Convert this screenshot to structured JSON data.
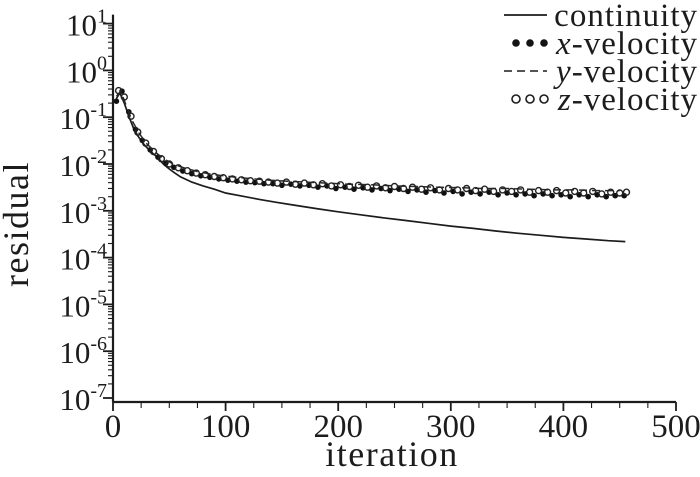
{
  "figure": {
    "background": "#ffffff",
    "ink_color": "#1c1c1c"
  },
  "chart_data": {
    "type": "line",
    "title": "",
    "xlabel": "iteration",
    "ylabel": "residual",
    "x_range": [
      0,
      500
    ],
    "x_major_ticks": [
      0,
      100,
      200,
      300,
      400,
      500
    ],
    "x_minor_tick_step": 25,
    "y_scale": "log",
    "y_range_exponents": [
      -7,
      1
    ],
    "y_tick_exponents": [
      1,
      0,
      -1,
      -2,
      -3,
      -4,
      -5,
      -6,
      -7
    ],
    "grid": false,
    "legend_position": "top-right",
    "series": [
      {
        "name": "continuity",
        "var": "",
        "label": "continuity",
        "style": "solid-line",
        "points": [
          [
            3,
            0.25
          ],
          [
            6,
            0.33
          ],
          [
            10,
            0.2
          ],
          [
            14,
            0.105
          ],
          [
            18,
            0.06
          ],
          [
            22,
            0.04
          ],
          [
            26,
            0.029
          ],
          [
            30,
            0.0225
          ],
          [
            35,
            0.0172
          ],
          [
            40,
            0.0135
          ],
          [
            45,
            0.0098
          ],
          [
            50,
            0.0078
          ],
          [
            55,
            0.0064
          ],
          [
            60,
            0.0053
          ],
          [
            70,
            0.0041
          ],
          [
            80,
            0.0034
          ],
          [
            90,
            0.0029
          ],
          [
            100,
            0.0024
          ],
          [
            115,
            0.00205
          ],
          [
            130,
            0.00175
          ],
          [
            145,
            0.00152
          ],
          [
            160,
            0.00133
          ],
          [
            180,
            0.00112
          ],
          [
            200,
            0.00095
          ],
          [
            220,
            0.00082
          ],
          [
            240,
            0.00071
          ],
          [
            260,
            0.00062
          ],
          [
            280,
            0.00054
          ],
          [
            300,
            0.00047
          ],
          [
            320,
            0.00042
          ],
          [
            340,
            0.00037
          ],
          [
            360,
            0.00033
          ],
          [
            380,
            0.0003
          ],
          [
            400,
            0.00027
          ],
          [
            420,
            0.00025
          ],
          [
            440,
            0.00023
          ],
          [
            455,
            0.00022
          ]
        ]
      },
      {
        "name": "x-velocity",
        "var": "x",
        "label": "-velocity",
        "style": "filled-dots",
        "points": [
          [
            3,
            0.22
          ],
          [
            8,
            0.36
          ],
          [
            14,
            0.13
          ],
          [
            20,
            0.055
          ],
          [
            26,
            0.032
          ],
          [
            33,
            0.02
          ],
          [
            40,
            0.014
          ],
          [
            47,
            0.0105
          ],
          [
            54,
            0.0085
          ],
          [
            62,
            0.0071
          ],
          [
            70,
            0.0062
          ],
          [
            78,
            0.0056
          ],
          [
            86,
            0.0052
          ],
          [
            94,
            0.0048
          ],
          [
            102,
            0.0045
          ],
          [
            110,
            0.0043
          ],
          [
            118,
            0.0041
          ],
          [
            126,
            0.004
          ],
          [
            134,
            0.0038
          ],
          [
            142,
            0.0038
          ],
          [
            150,
            0.0035
          ],
          [
            158,
            0.0037
          ],
          [
            166,
            0.0034
          ],
          [
            174,
            0.0035
          ],
          [
            182,
            0.0032
          ],
          [
            190,
            0.0034
          ],
          [
            198,
            0.003
          ],
          [
            206,
            0.0032
          ],
          [
            214,
            0.0029
          ],
          [
            222,
            0.0031
          ],
          [
            230,
            0.0028
          ],
          [
            238,
            0.003
          ],
          [
            246,
            0.0027
          ],
          [
            254,
            0.0029
          ],
          [
            262,
            0.0026
          ],
          [
            270,
            0.0028
          ],
          [
            278,
            0.0025
          ],
          [
            286,
            0.0027
          ],
          [
            294,
            0.0024
          ],
          [
            302,
            0.0026
          ],
          [
            310,
            0.0023
          ],
          [
            318,
            0.0025
          ],
          [
            326,
            0.0023
          ],
          [
            334,
            0.0025
          ],
          [
            342,
            0.0022
          ],
          [
            350,
            0.0024
          ],
          [
            358,
            0.0022
          ],
          [
            366,
            0.0023
          ],
          [
            374,
            0.0021
          ],
          [
            382,
            0.0023
          ],
          [
            390,
            0.0021
          ],
          [
            398,
            0.0022
          ],
          [
            406,
            0.002
          ],
          [
            414,
            0.0022
          ],
          [
            422,
            0.002
          ],
          [
            430,
            0.0022
          ],
          [
            438,
            0.002
          ],
          [
            446,
            0.0021
          ],
          [
            454,
            0.0021
          ]
        ]
      },
      {
        "name": "y-velocity",
        "var": "y",
        "label": "-velocity",
        "style": "dashed-line",
        "points": [
          [
            3,
            0.28
          ],
          [
            7,
            0.36
          ],
          [
            12,
            0.17
          ],
          [
            17,
            0.085
          ],
          [
            23,
            0.046
          ],
          [
            30,
            0.027
          ],
          [
            38,
            0.0175
          ],
          [
            46,
            0.0125
          ],
          [
            55,
            0.0096
          ],
          [
            65,
            0.008
          ],
          [
            75,
            0.0069
          ],
          [
            85,
            0.0062
          ],
          [
            95,
            0.0057
          ],
          [
            110,
            0.0052
          ],
          [
            125,
            0.0048
          ],
          [
            140,
            0.0045
          ],
          [
            155,
            0.0043
          ],
          [
            170,
            0.0041
          ],
          [
            190,
            0.0039
          ],
          [
            210,
            0.0037
          ],
          [
            230,
            0.0036
          ],
          [
            250,
            0.0034
          ],
          [
            270,
            0.0033
          ],
          [
            290,
            0.0032
          ],
          [
            310,
            0.0031
          ],
          [
            330,
            0.003
          ],
          [
            350,
            0.003
          ],
          [
            370,
            0.0029
          ],
          [
            390,
            0.0028
          ],
          [
            410,
            0.0028
          ],
          [
            430,
            0.0027
          ],
          [
            450,
            0.0027
          ]
        ]
      },
      {
        "name": "z-velocity",
        "var": "z",
        "label": "-velocity",
        "style": "open-circles",
        "points": [
          [
            5,
            0.37
          ],
          [
            10,
            0.27
          ],
          [
            16,
            0.105
          ],
          [
            22,
            0.048
          ],
          [
            29,
            0.028
          ],
          [
            36,
            0.0185
          ],
          [
            43,
            0.013
          ],
          [
            50,
            0.01
          ],
          [
            58,
            0.0083
          ],
          [
            66,
            0.0072
          ],
          [
            74,
            0.0064
          ],
          [
            82,
            0.0059
          ],
          [
            90,
            0.0054
          ],
          [
            98,
            0.0051
          ],
          [
            106,
            0.0048
          ],
          [
            114,
            0.0046
          ],
          [
            122,
            0.0044
          ],
          [
            130,
            0.0043
          ],
          [
            138,
            0.0041
          ],
          [
            146,
            0.0039
          ],
          [
            154,
            0.0041
          ],
          [
            162,
            0.0037
          ],
          [
            170,
            0.0039
          ],
          [
            178,
            0.0036
          ],
          [
            186,
            0.0038
          ],
          [
            194,
            0.0034
          ],
          [
            202,
            0.0036
          ],
          [
            210,
            0.0033
          ],
          [
            218,
            0.0035
          ],
          [
            226,
            0.0032
          ],
          [
            234,
            0.0034
          ],
          [
            242,
            0.0031
          ],
          [
            250,
            0.0033
          ],
          [
            258,
            0.003
          ],
          [
            266,
            0.0032
          ],
          [
            274,
            0.0029
          ],
          [
            282,
            0.0031
          ],
          [
            290,
            0.0028
          ],
          [
            298,
            0.003
          ],
          [
            306,
            0.0028
          ],
          [
            314,
            0.003
          ],
          [
            322,
            0.0027
          ],
          [
            330,
            0.0029
          ],
          [
            338,
            0.0026
          ],
          [
            346,
            0.0028
          ],
          [
            354,
            0.0026
          ],
          [
            362,
            0.0028
          ],
          [
            370,
            0.0025
          ],
          [
            378,
            0.0027
          ],
          [
            386,
            0.0025
          ],
          [
            394,
            0.0027
          ],
          [
            402,
            0.0024
          ],
          [
            410,
            0.0026
          ],
          [
            418,
            0.0024
          ],
          [
            426,
            0.0026
          ],
          [
            434,
            0.0023
          ],
          [
            442,
            0.0025
          ],
          [
            450,
            0.0024
          ],
          [
            456,
            0.0025
          ]
        ]
      }
    ]
  }
}
